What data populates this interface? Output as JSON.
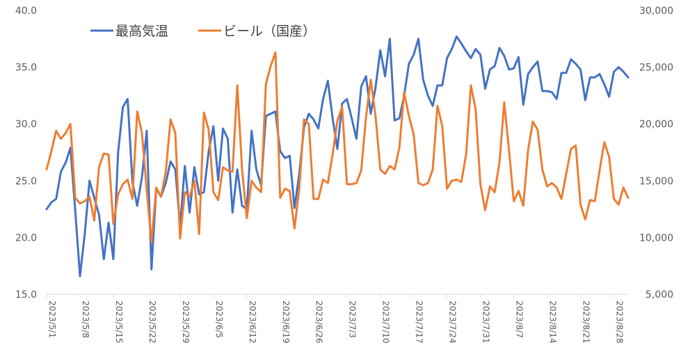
{
  "chart_data": {
    "type": "line",
    "title": "",
    "x_dates": [
      "2023/5/1",
      "2023/5/2",
      "2023/5/3",
      "2023/5/4",
      "2023/5/5",
      "2023/5/6",
      "2023/5/7",
      "2023/5/8",
      "2023/5/9",
      "2023/5/10",
      "2023/5/11",
      "2023/5/12",
      "2023/5/13",
      "2023/5/14",
      "2023/5/15",
      "2023/5/16",
      "2023/5/17",
      "2023/5/18",
      "2023/5/19",
      "2023/5/20",
      "2023/5/21",
      "2023/5/22",
      "2023/5/23",
      "2023/5/24",
      "2023/5/25",
      "2023/5/26",
      "2023/5/27",
      "2023/5/28",
      "2023/5/29",
      "2023/5/30",
      "2023/5/31",
      "2023/6/1",
      "2023/6/2",
      "2023/6/3",
      "2023/6/4",
      "2023/6/5",
      "2023/6/6",
      "2023/6/7",
      "2023/6/8",
      "2023/6/9",
      "2023/6/10",
      "2023/6/11",
      "2023/6/12",
      "2023/6/13",
      "2023/6/14",
      "2023/6/15",
      "2023/6/16",
      "2023/6/17",
      "2023/6/18",
      "2023/6/19",
      "2023/6/20",
      "2023/6/21",
      "2023/6/22",
      "2023/6/23",
      "2023/6/24",
      "2023/6/25",
      "2023/6/26",
      "2023/6/27",
      "2023/6/28",
      "2023/6/29",
      "2023/6/30",
      "2023/7/1",
      "2023/7/2",
      "2023/7/3",
      "2023/7/4",
      "2023/7/5",
      "2023/7/6",
      "2023/7/7",
      "2023/7/8",
      "2023/7/9",
      "2023/7/10",
      "2023/7/11",
      "2023/7/12",
      "2023/7/13",
      "2023/7/14",
      "2023/7/15",
      "2023/7/16",
      "2023/7/17",
      "2023/7/18",
      "2023/7/19",
      "2023/7/20",
      "2023/7/21",
      "2023/7/22",
      "2023/7/23",
      "2023/7/24",
      "2023/7/25",
      "2023/7/26",
      "2023/7/27",
      "2023/7/28",
      "2023/7/29",
      "2023/7/30",
      "2023/7/31",
      "2023/8/1",
      "2023/8/2",
      "2023/8/3",
      "2023/8/4",
      "2023/8/5",
      "2023/8/6",
      "2023/8/7",
      "2023/8/8",
      "2023/8/9",
      "2023/8/10",
      "2023/8/11",
      "2023/8/12",
      "2023/8/13",
      "2023/8/14",
      "2023/8/15",
      "2023/8/16",
      "2023/8/17",
      "2023/8/18",
      "2023/8/19",
      "2023/8/20",
      "2023/8/21",
      "2023/8/22",
      "2023/8/23",
      "2023/8/24",
      "2023/8/25",
      "2023/8/26",
      "2023/8/27",
      "2023/8/28",
      "2023/8/29",
      "2023/8/30",
      "2023/8/31"
    ],
    "x_tick_labels": [
      "2023/5/1",
      "2023/5/8",
      "2023/5/15",
      "2023/5/22",
      "2023/5/29",
      "2023/6/5",
      "2023/6/12",
      "2023/6/19",
      "2023/6/26",
      "2023/7/3",
      "2023/7/10",
      "2023/7/17",
      "2023/7/24",
      "2023/7/31",
      "2023/8/7",
      "2023/8/14",
      "2023/8/21",
      "2023/8/28"
    ],
    "y_left": {
      "lim": [
        15,
        40
      ],
      "ticks": [
        "15.0",
        "20.0",
        "25.0",
        "30.0",
        "35.0",
        "40.0"
      ]
    },
    "y_right": {
      "lim": [
        5000,
        30000
      ],
      "ticks": [
        "5,000",
        "10,000",
        "15,000",
        "20,000",
        "25,000",
        "30,000"
      ]
    },
    "grid": false,
    "legend_position": "top-left",
    "series": [
      {
        "name": "最高気温",
        "axis": "left",
        "color": "#4472C4",
        "values": [
          22.5,
          23.1,
          23.4,
          25.8,
          26.6,
          27.9,
          22.4,
          16.6,
          20.3,
          25.0,
          23.5,
          22.0,
          18.1,
          21.3,
          18.1,
          27.5,
          31.5,
          32.2,
          24.9,
          22.8,
          25.3,
          29.4,
          17.2,
          24.3,
          23.6,
          24.8,
          26.7,
          26.0,
          21.0,
          26.3,
          22.2,
          26.2,
          23.8,
          24.0,
          27.6,
          29.8,
          25.0,
          29.6,
          28.7,
          22.2,
          26.0,
          22.8,
          22.5,
          29.4,
          26.0,
          24.6,
          30.7,
          30.9,
          31.1,
          27.6,
          27.0,
          27.2,
          22.6,
          25.6,
          29.7,
          30.9,
          30.4,
          29.6,
          32.2,
          33.8,
          30.5,
          27.8,
          31.8,
          32.2,
          30.5,
          28.7,
          33.3,
          34.2,
          30.9,
          33.2,
          36.5,
          34.2,
          37.5,
          30.3,
          30.5,
          32.5,
          35.3,
          36.1,
          37.5,
          33.9,
          32.5,
          31.6,
          33.4,
          33.4,
          35.8,
          36.6,
          37.7,
          37.1,
          36.4,
          35.8,
          36.6,
          36.1,
          33.1,
          34.8,
          35.1,
          36.7,
          36.0,
          34.8,
          34.9,
          35.9,
          31.7,
          34.4,
          35.0,
          35.5,
          32.9,
          32.9,
          32.8,
          32.2,
          34.5,
          34.5,
          35.7,
          35.3,
          34.8,
          32.1,
          34.1,
          34.1,
          34.4,
          33.5,
          32.4,
          34.6,
          35.0,
          34.6,
          34.1
        ]
      },
      {
        "name": "ビール（国産）",
        "axis": "right",
        "color": "#ED7D31",
        "values": [
          16000,
          17600,
          19400,
          18700,
          19200,
          20000,
          13500,
          13000,
          13200,
          13600,
          11500,
          16200,
          17400,
          17300,
          11200,
          13800,
          14700,
          15100,
          13400,
          21100,
          19200,
          14200,
          9600,
          14400,
          13600,
          15800,
          20400,
          19200,
          9900,
          14000,
          13600,
          15000,
          10300,
          21000,
          19500,
          14000,
          13300,
          16200,
          15900,
          15800,
          23400,
          16000,
          11700,
          15000,
          14400,
          14000,
          23500,
          25100,
          26300,
          13500,
          14300,
          14100,
          10800,
          14300,
          20400,
          20000,
          13400,
          13400,
          15100,
          14800,
          17300,
          20300,
          21500,
          14700,
          14700,
          14800,
          15900,
          20600,
          23900,
          20700,
          16000,
          15600,
          16300,
          16000,
          17900,
          22800,
          20700,
          19100,
          14800,
          14600,
          14800,
          16000,
          21600,
          19800,
          14300,
          15000,
          15100,
          14900,
          17300,
          23400,
          21300,
          14700,
          12400,
          14500,
          14000,
          16600,
          21900,
          17700,
          13200,
          14100,
          12800,
          17700,
          20200,
          19500,
          16000,
          14500,
          14800,
          14400,
          13400,
          15600,
          17800,
          18100,
          12900,
          11600,
          13300,
          13200,
          15900,
          18400,
          17100,
          13400,
          12900,
          14400,
          13500
        ]
      }
    ]
  }
}
